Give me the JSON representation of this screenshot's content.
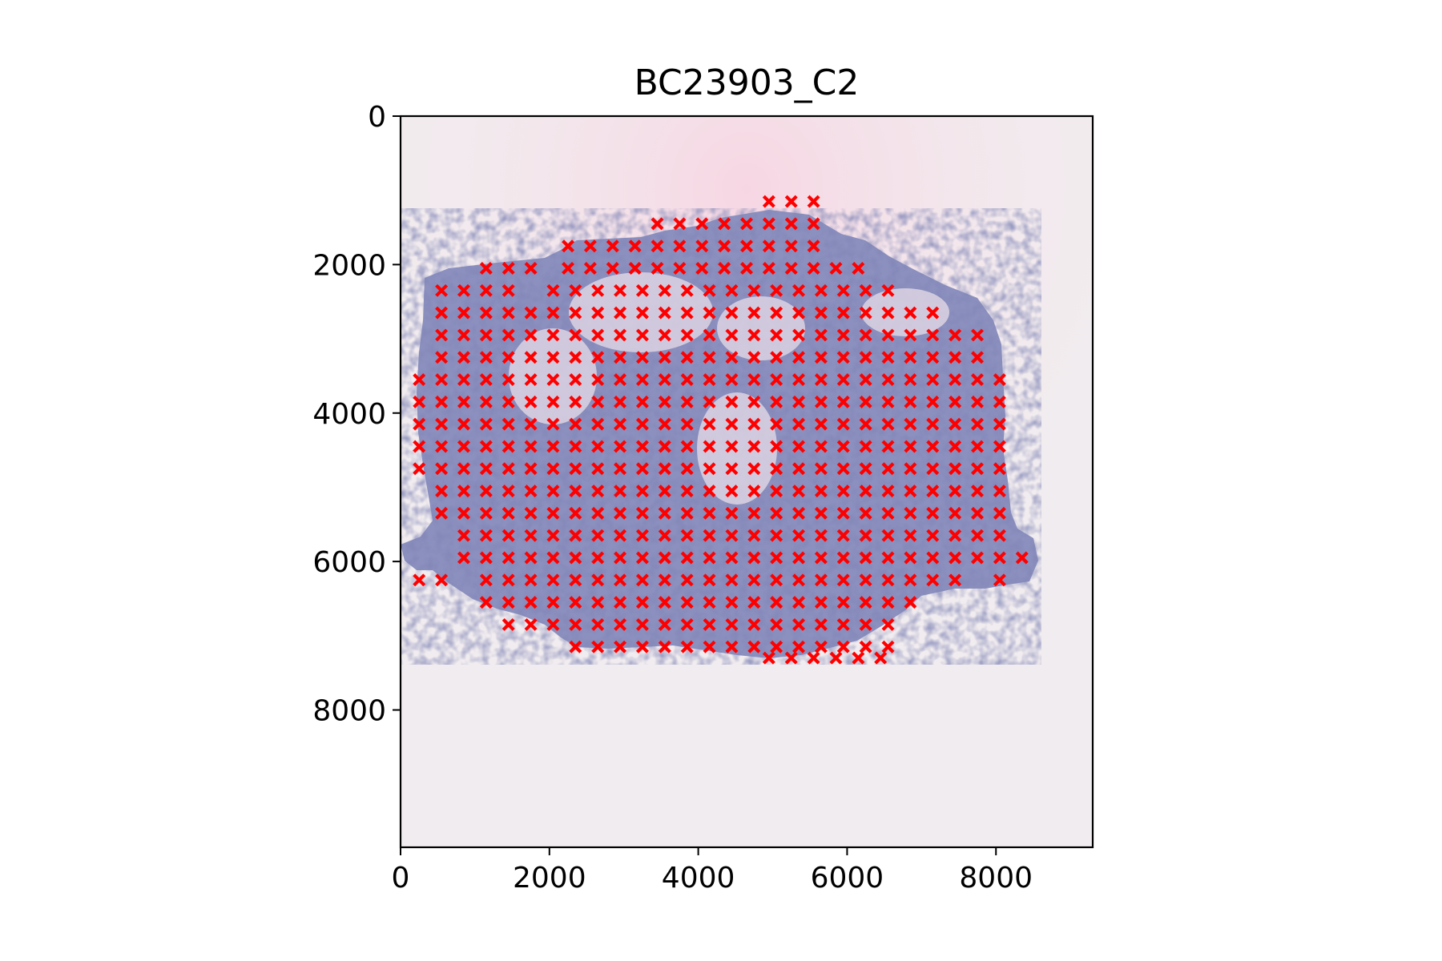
{
  "chart_data": {
    "type": "scatter",
    "title": "BC23903_C2",
    "xlabel": "",
    "ylabel": "",
    "xlim": [
      0,
      9300
    ],
    "ylim": [
      9850,
      0
    ],
    "y_inverted": true,
    "grid": false,
    "legend": "none",
    "xticks": [
      0,
      2000,
      4000,
      6000,
      8000
    ],
    "yticks": [
      0,
      2000,
      4000,
      6000,
      8000
    ],
    "marker": "x",
    "marker_color": "#ff0000",
    "background_image": "H&E tissue section (purple-stained tissue on pale pink/white slide)",
    "grid_spacing": 300,
    "rows": [
      {
        "y": 1150,
        "x": [
          4950,
          5250,
          5550
        ]
      },
      {
        "y": 1450,
        "x": [
          3450,
          3750,
          4050,
          4350,
          4650,
          4950,
          5250,
          5550
        ]
      },
      {
        "y": 1750,
        "x": [
          2250,
          2550,
          2850,
          3150,
          3450,
          3750,
          4050,
          4350,
          4650,
          4950,
          5250,
          5550
        ]
      },
      {
        "y": 2050,
        "x": [
          1150,
          1450,
          1750,
          2250,
          2550,
          2850,
          3150,
          3450,
          3750,
          4050,
          4350,
          4650,
          4950,
          5250,
          5550,
          5850,
          6150
        ]
      },
      {
        "y": 2350,
        "x": [
          550,
          850,
          1150,
          1450,
          2050,
          2350,
          2650,
          2950,
          3250,
          3550,
          3850,
          4150,
          4450,
          4750,
          5050,
          5350,
          5650,
          5950,
          6250,
          6550
        ]
      },
      {
        "y": 2650,
        "x": [
          550,
          850,
          1150,
          1450,
          1750,
          2050,
          2350,
          2650,
          2950,
          3250,
          3550,
          3850,
          4150,
          4450,
          4750,
          5050,
          5350,
          5650,
          5950,
          6250,
          6550,
          6850,
          7150
        ]
      },
      {
        "y": 2950,
        "x": [
          550,
          850,
          1150,
          1450,
          1750,
          2050,
          2350,
          2650,
          2950,
          3250,
          3550,
          3850,
          4150,
          4450,
          4750,
          5050,
          5350,
          5650,
          5950,
          6250,
          6550,
          6850,
          7150,
          7450,
          7750
        ]
      },
      {
        "y": 3250,
        "x": [
          550,
          850,
          1150,
          1450,
          1750,
          2050,
          2350,
          2650,
          2950,
          3250,
          3550,
          3850,
          4150,
          4450,
          4750,
          5050,
          5350,
          5650,
          5950,
          6250,
          6550,
          6850,
          7150,
          7450,
          7750
        ]
      },
      {
        "y": 3550,
        "x": [
          250,
          550,
          850,
          1150,
          1450,
          1750,
          2050,
          2350,
          2650,
          2950,
          3250,
          3550,
          3850,
          4150,
          4450,
          4750,
          5050,
          5350,
          5650,
          5950,
          6250,
          6550,
          6850,
          7150,
          7450,
          7750,
          8050
        ]
      },
      {
        "y": 3850,
        "x": [
          250,
          550,
          850,
          1150,
          1450,
          1750,
          2050,
          2350,
          2650,
          2950,
          3250,
          3550,
          3850,
          4150,
          4450,
          4750,
          5050,
          5350,
          5650,
          5950,
          6250,
          6550,
          6850,
          7150,
          7450,
          7750,
          8050
        ]
      },
      {
        "y": 4150,
        "x": [
          250,
          550,
          850,
          1150,
          1450,
          1750,
          2050,
          2350,
          2650,
          2950,
          3250,
          3550,
          3850,
          4150,
          4450,
          4750,
          5050,
          5350,
          5650,
          5950,
          6250,
          6550,
          6850,
          7150,
          7450,
          7750,
          8050
        ]
      },
      {
        "y": 4450,
        "x": [
          250,
          550,
          850,
          1150,
          1450,
          1750,
          2050,
          2350,
          2650,
          2950,
          3250,
          3550,
          3850,
          4150,
          4450,
          4750,
          5050,
          5350,
          5650,
          5950,
          6250,
          6550,
          6850,
          7150,
          7450,
          7750,
          8050
        ]
      },
      {
        "y": 4750,
        "x": [
          250,
          550,
          850,
          1150,
          1450,
          1750,
          2050,
          2350,
          2650,
          2950,
          3250,
          3550,
          3850,
          4150,
          4450,
          4750,
          5050,
          5350,
          5650,
          5950,
          6250,
          6550,
          6850,
          7150,
          7450,
          7750,
          8050
        ]
      },
      {
        "y": 5050,
        "x": [
          550,
          850,
          1150,
          1450,
          1750,
          2050,
          2350,
          2650,
          2950,
          3250,
          3550,
          3850,
          4150,
          4450,
          4750,
          5050,
          5350,
          5650,
          5950,
          6250,
          6550,
          6850,
          7150,
          7450,
          7750,
          8050
        ]
      },
      {
        "y": 5350,
        "x": [
          550,
          850,
          1150,
          1450,
          1750,
          2050,
          2350,
          2650,
          2950,
          3250,
          3550,
          3850,
          4150,
          4450,
          4750,
          5050,
          5350,
          5650,
          5950,
          6250,
          6550,
          6850,
          7150,
          7450,
          7750,
          8050
        ]
      },
      {
        "y": 5650,
        "x": [
          850,
          1150,
          1450,
          1750,
          2050,
          2350,
          2650,
          2950,
          3250,
          3550,
          3850,
          4150,
          4450,
          4750,
          5050,
          5350,
          5650,
          5950,
          6250,
          6550,
          6850,
          7150,
          7450,
          7750,
          8050
        ]
      },
      {
        "y": 5950,
        "x": [
          850,
          1150,
          1450,
          1750,
          2050,
          2350,
          2650,
          2950,
          3250,
          3550,
          3850,
          4150,
          4450,
          4750,
          5050,
          5350,
          5650,
          5950,
          6250,
          6550,
          6850,
          7150,
          7450,
          7750,
          8050,
          8350
        ]
      },
      {
        "y": 6250,
        "x": [
          250,
          550,
          1150,
          1450,
          1750,
          2050,
          2350,
          2650,
          2950,
          3250,
          3550,
          3850,
          4150,
          4450,
          4750,
          5050,
          5350,
          5650,
          5950,
          6250,
          6550,
          6850,
          7150,
          7450,
          8050
        ]
      },
      {
        "y": 6550,
        "x": [
          1150,
          1450,
          1750,
          2050,
          2350,
          2650,
          2950,
          3250,
          3550,
          3850,
          4150,
          4450,
          4750,
          5050,
          5350,
          5650,
          5950,
          6250,
          6550,
          6850
        ]
      },
      {
        "y": 6850,
        "x": [
          1450,
          1750,
          2050,
          2350,
          2650,
          2950,
          3250,
          3550,
          3850,
          4150,
          4450,
          4750,
          5050,
          5350,
          5650,
          5950,
          6250,
          6550
        ]
      },
      {
        "y": 7150,
        "x": [
          2350,
          2650,
          2950,
          3250,
          3550,
          3850,
          4150,
          4450,
          4750,
          5050,
          5350,
          5650,
          5950,
          6250,
          6550
        ]
      },
      {
        "y": 7300,
        "x": [
          4950,
          5250,
          5550,
          5850,
          6150,
          6450
        ]
      }
    ]
  }
}
